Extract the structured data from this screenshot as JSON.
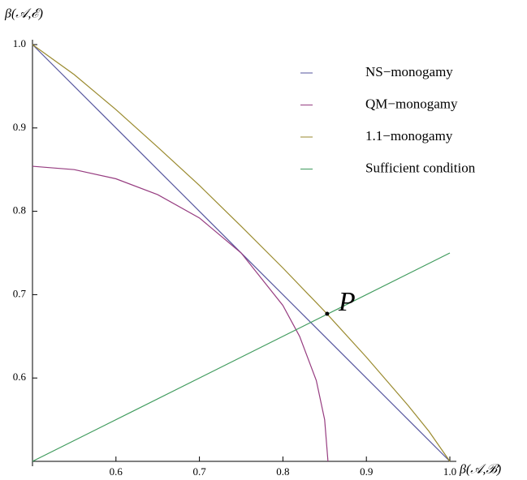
{
  "chart_data": {
    "type": "line",
    "x_label": "β(𝒜,ℬ)",
    "y_label": "β(𝒜,ℰ)",
    "xlim": [
      0.5,
      1.0
    ],
    "ylim": [
      0.5,
      1.0
    ],
    "xticks": [
      0.6,
      0.7,
      0.8,
      0.9,
      {
        "value": 1,
        "label": "1.0"
      }
    ],
    "yticks": [
      0.6,
      0.7,
      0.8,
      0.9,
      {
        "value": 1,
        "label": "1.0"
      }
    ],
    "legend": "upper right",
    "series": [
      {
        "name": "NS−monogamy",
        "color": "#55559e",
        "x": [
          0.5,
          1.0
        ],
        "values": [
          1.0,
          0.5
        ]
      },
      {
        "name": "QM−monogamy",
        "color": "#963c80",
        "x": [
          0.5,
          0.55,
          0.6,
          0.65,
          0.7,
          0.75,
          0.8,
          0.82,
          0.84,
          0.85,
          0.854
        ],
        "values": [
          0.854,
          0.85,
          0.839,
          0.82,
          0.792,
          0.75,
          0.687,
          0.65,
          0.597,
          0.55,
          0.5
        ]
      },
      {
        "name": "1.1−monogamy",
        "color": "#9a8a2e",
        "x": [
          0.5,
          0.55,
          0.6,
          0.65,
          0.7,
          0.75,
          0.8,
          0.85,
          0.9,
          0.95,
          0.975,
          1.0
        ],
        "values": [
          1.0,
          0.964,
          0.922,
          0.877,
          0.831,
          0.782,
          0.732,
          0.68,
          0.625,
          0.567,
          0.536,
          0.5
        ]
      },
      {
        "name": "Sufficient condition",
        "color": "#3e9a5c",
        "x": [
          0.5,
          1.0
        ],
        "values": [
          0.5,
          0.75
        ]
      }
    ],
    "annotations": [
      {
        "text": "P",
        "x": 0.853,
        "y": 0.677
      }
    ]
  }
}
